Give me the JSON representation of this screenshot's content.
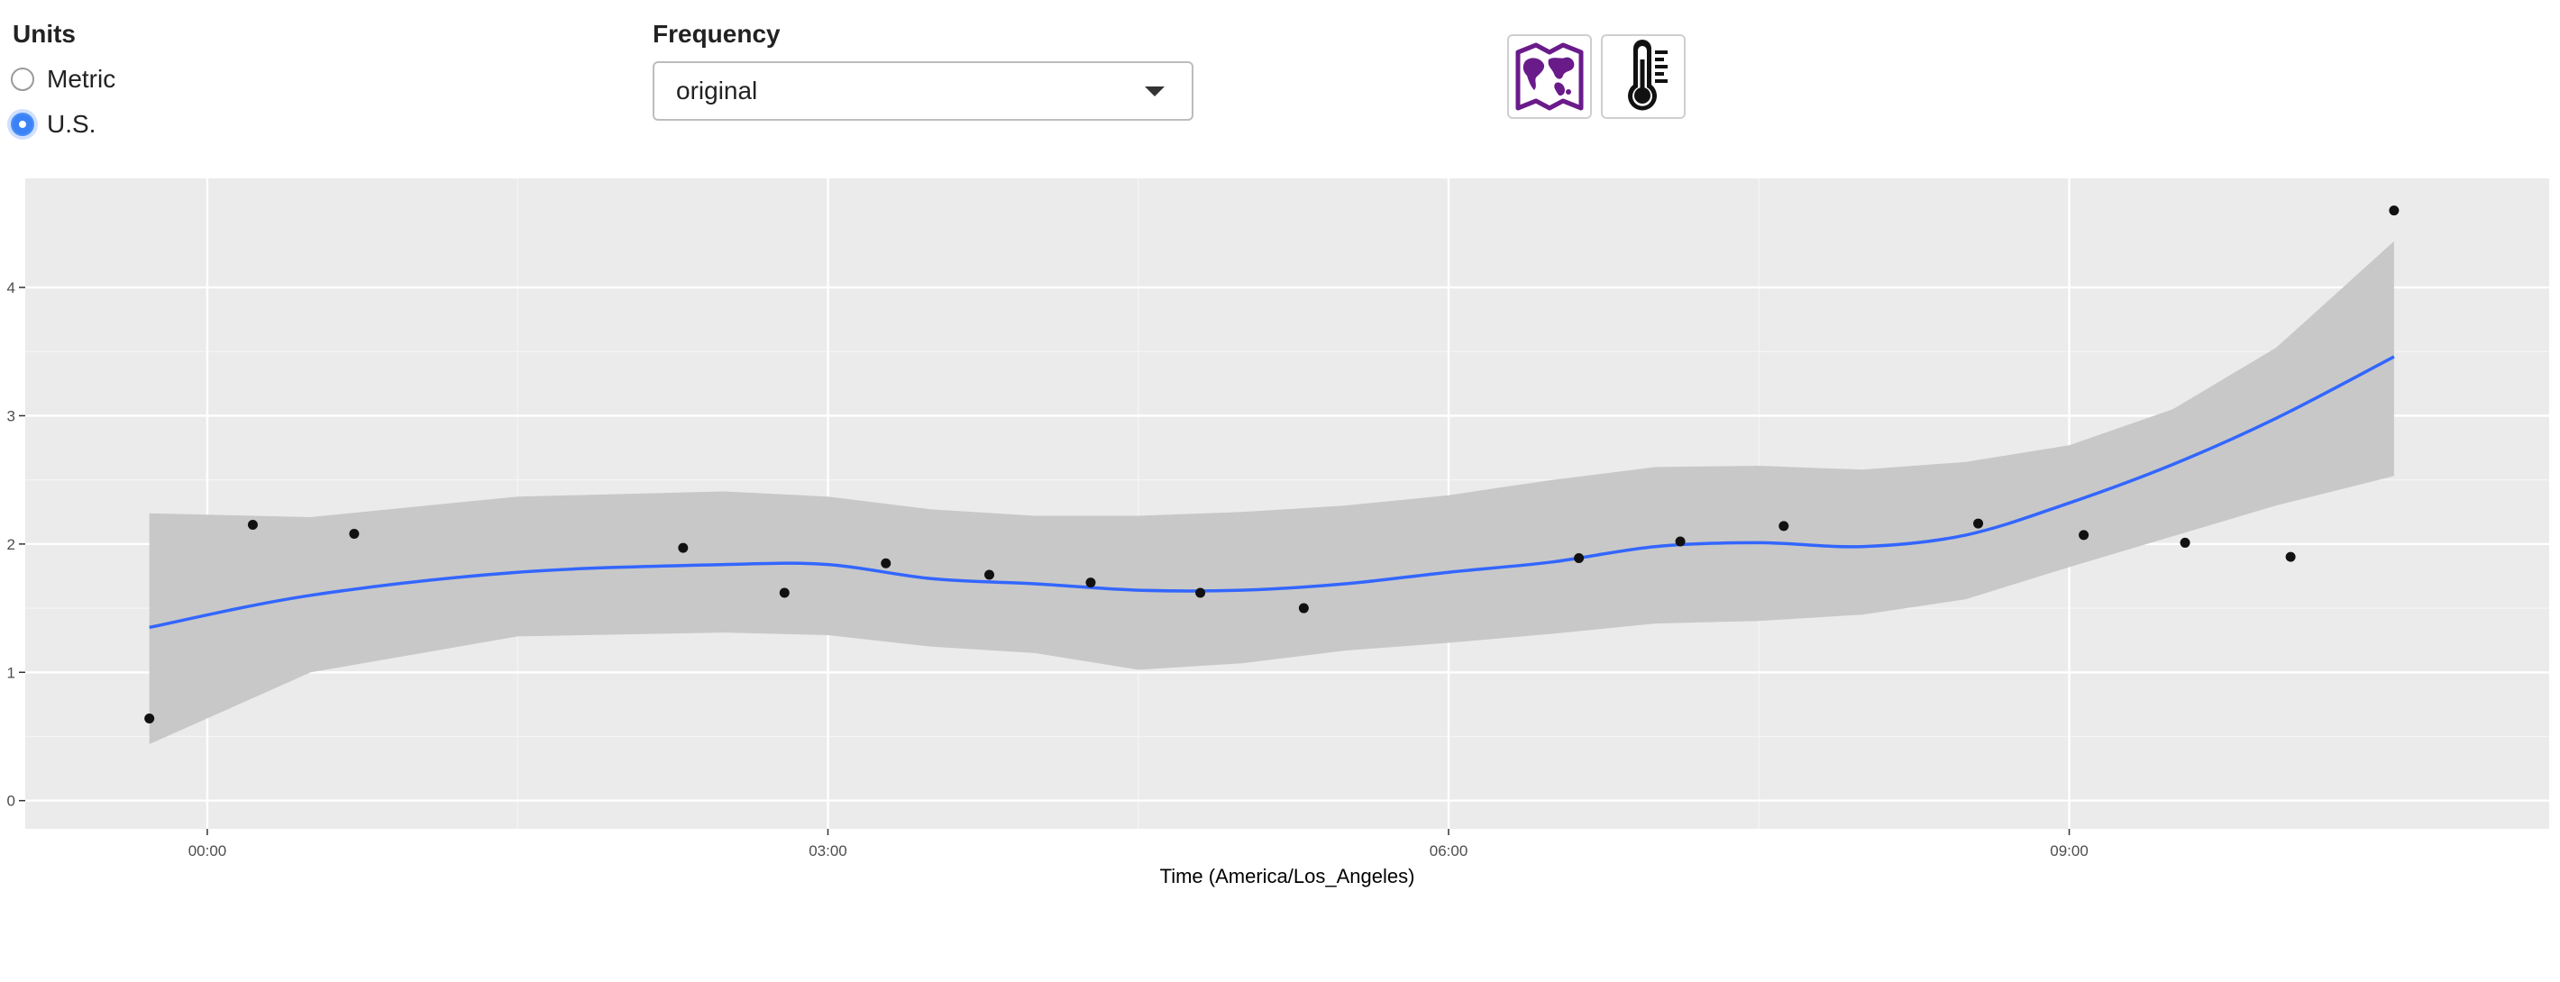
{
  "controls": {
    "units": {
      "label": "Units",
      "options": [
        {
          "label": "Metric",
          "selected": false
        },
        {
          "label": "U.S.",
          "selected": true
        }
      ]
    },
    "frequency": {
      "label": "Frequency",
      "selected": "original"
    },
    "buttons": [
      {
        "icon": "map-icon",
        "color": "#6a1b8a"
      },
      {
        "icon": "thermometer-icon",
        "color": "#111111"
      }
    ]
  },
  "chart_data": {
    "type": "scatter",
    "title": "",
    "xlabel": "Time (America/Los_Angeles)",
    "ylabel": "",
    "x_unit": "hours",
    "xlim": [
      -0.88,
      11.32
    ],
    "ylim": [
      -0.22,
      4.85
    ],
    "x_ticks": [
      {
        "value": 0,
        "label": "00:00"
      },
      {
        "value": 3,
        "label": "03:00"
      },
      {
        "value": 6,
        "label": "06:00"
      },
      {
        "value": 9,
        "label": "09:00"
      }
    ],
    "y_ticks": [
      0,
      1,
      2,
      3,
      4
    ],
    "grid": true,
    "background": "#ebebeb",
    "points": {
      "x": [
        -0.28,
        0.22,
        0.71,
        2.3,
        2.79,
        3.28,
        3.78,
        4.27,
        4.8,
        5.3,
        6.63,
        7.12,
        7.62,
        8.56,
        9.07,
        9.56,
        10.07,
        10.57
      ],
      "y": [
        0.64,
        2.15,
        2.08,
        1.97,
        1.62,
        1.85,
        1.76,
        1.7,
        1.62,
        1.5,
        1.89,
        2.02,
        2.14,
        2.16,
        2.07,
        2.01,
        1.9,
        4.6
      ]
    },
    "smooth": {
      "color": "#3366ff",
      "band_color": "#c8c8c8",
      "x": [
        -0.28,
        0.5,
        1.5,
        2.5,
        3.0,
        3.5,
        4.0,
        4.5,
        5.0,
        5.5,
        6.0,
        6.5,
        7.0,
        7.5,
        8.0,
        8.5,
        9.0,
        9.5,
        10.0,
        10.57
      ],
      "y": [
        1.35,
        1.6,
        1.78,
        1.84,
        1.84,
        1.73,
        1.69,
        1.64,
        1.64,
        1.69,
        1.78,
        1.86,
        1.98,
        2.01,
        1.98,
        2.07,
        2.32,
        2.62,
        2.98,
        3.46
      ],
      "lower": [
        0.44,
        1.0,
        1.28,
        1.31,
        1.29,
        1.2,
        1.15,
        1.02,
        1.07,
        1.17,
        1.23,
        1.3,
        1.38,
        1.4,
        1.45,
        1.57,
        1.82,
        2.06,
        2.3,
        2.53
      ],
      "upper": [
        2.24,
        2.21,
        2.37,
        2.41,
        2.37,
        2.27,
        2.22,
        2.22,
        2.25,
        2.3,
        2.38,
        2.5,
        2.6,
        2.61,
        2.58,
        2.64,
        2.77,
        3.05,
        3.53,
        4.36
      ]
    }
  }
}
